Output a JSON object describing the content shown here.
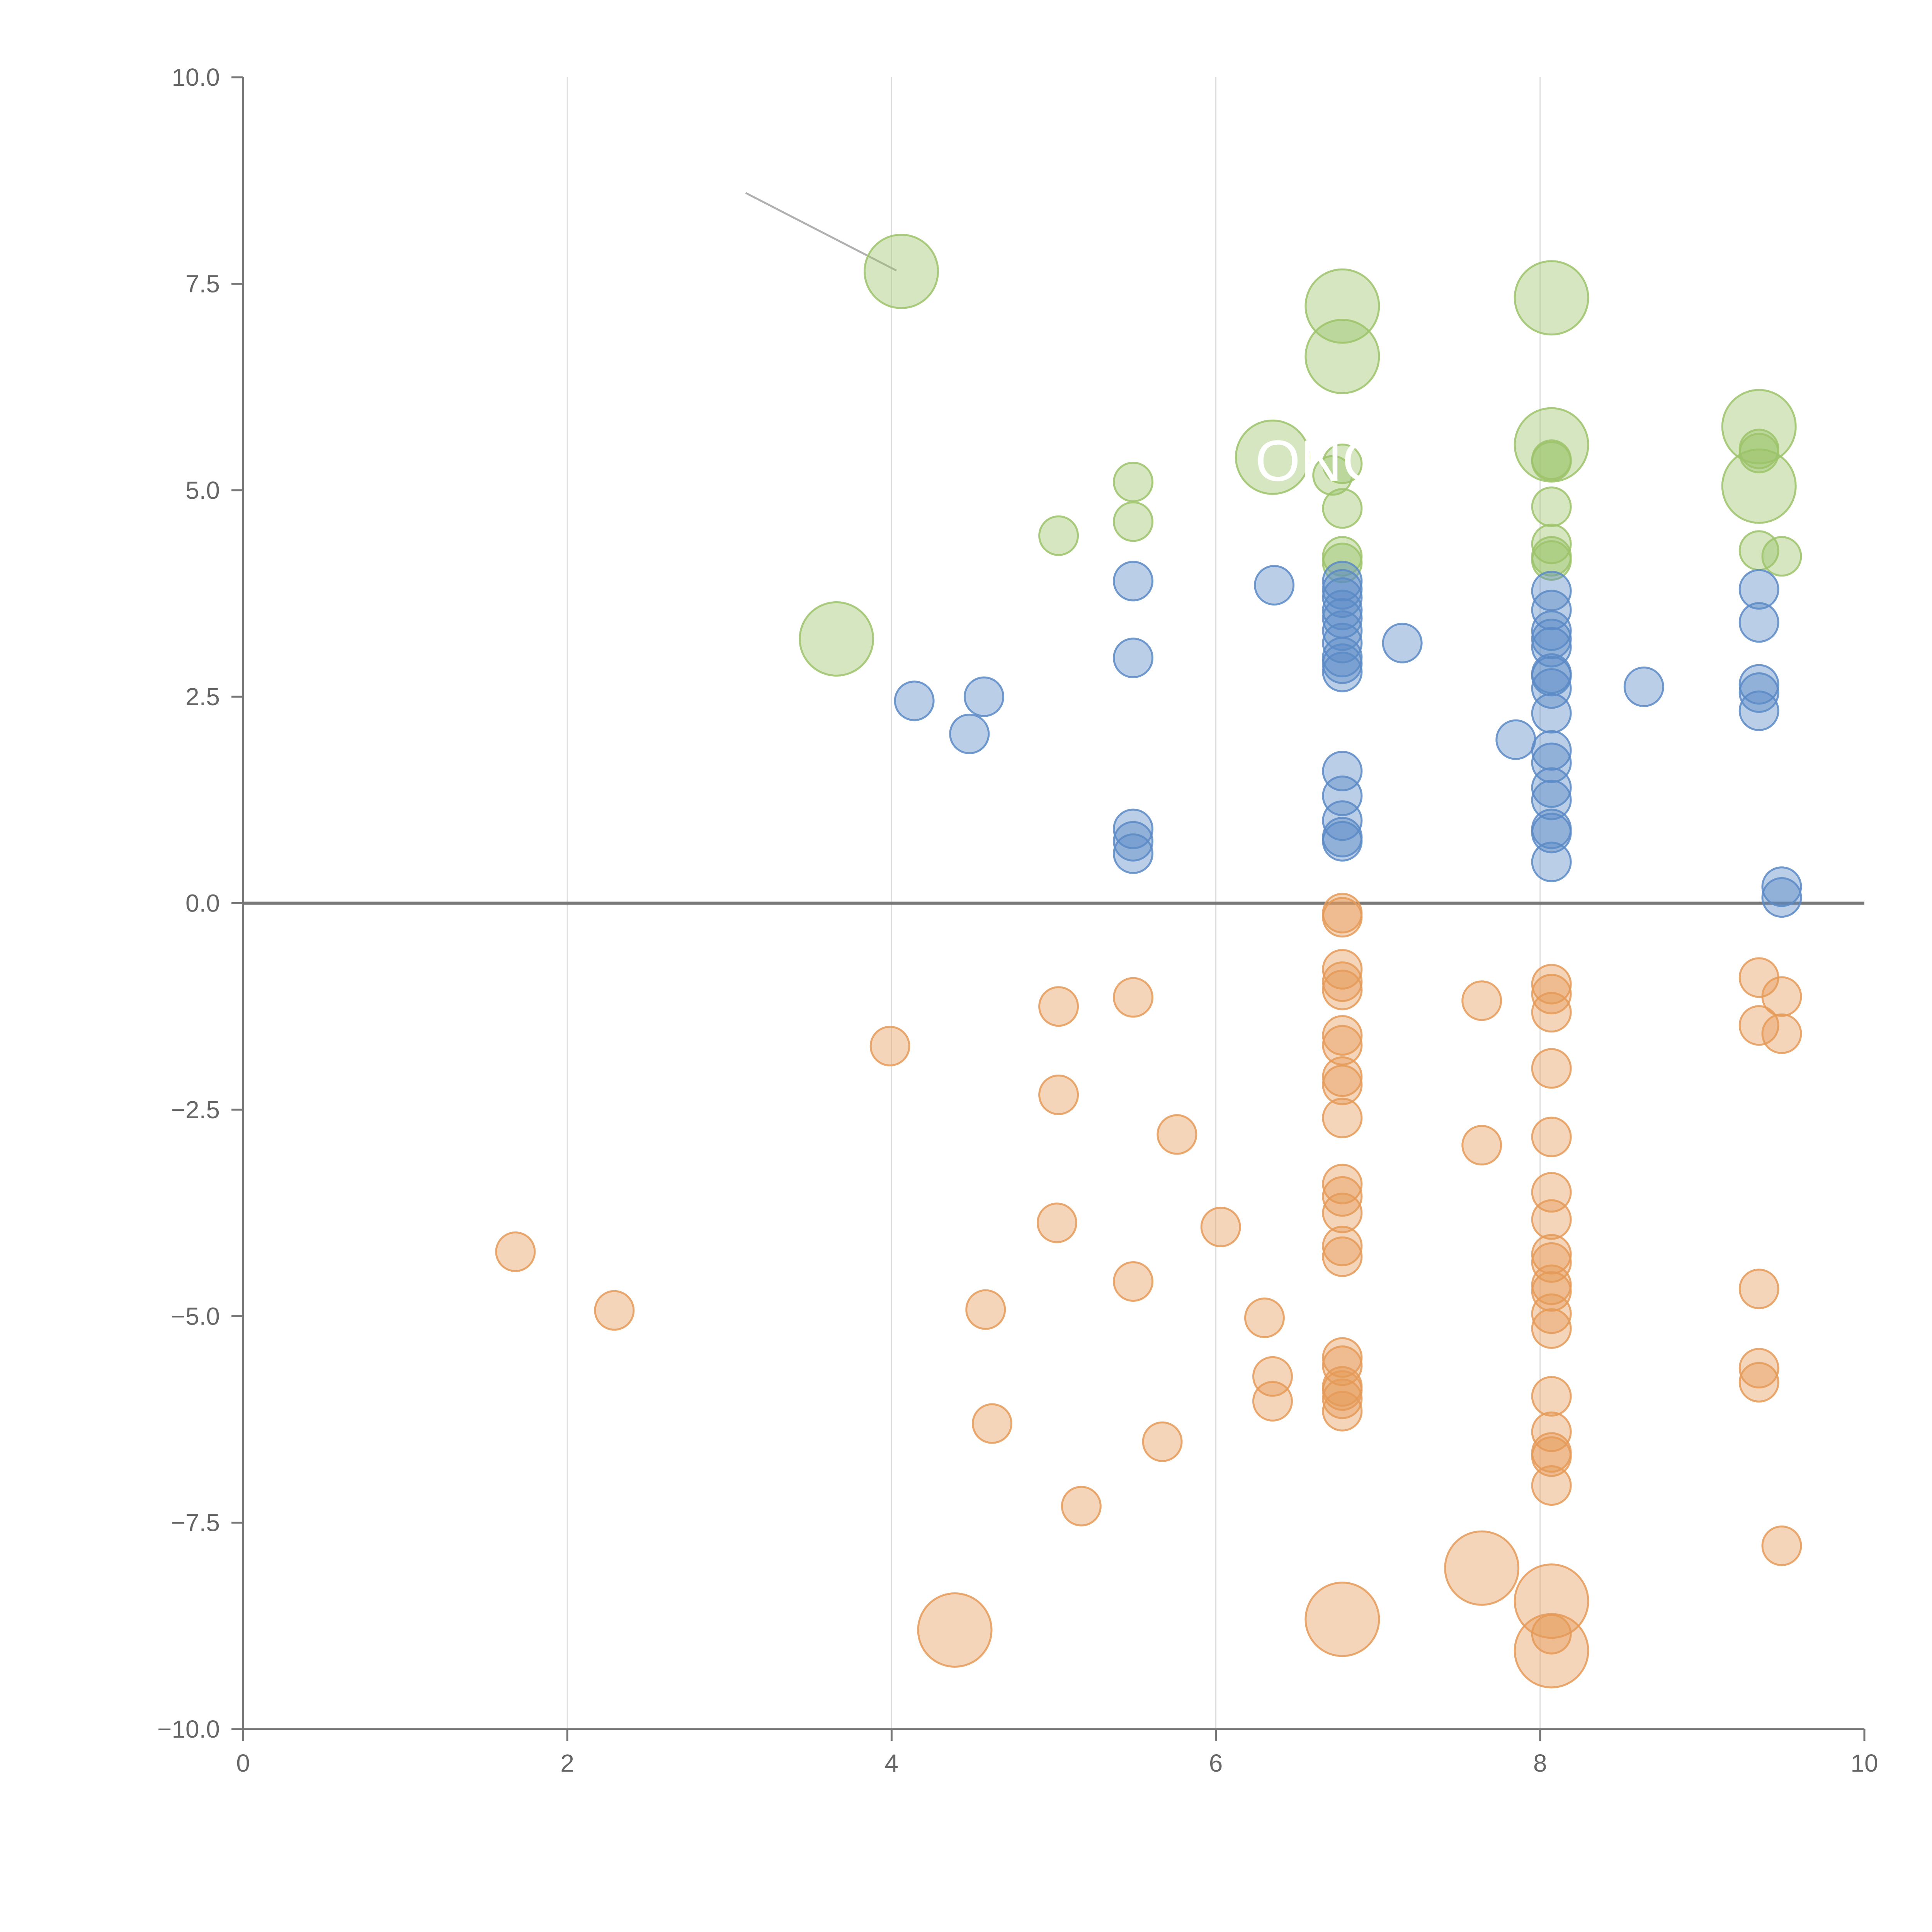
{
  "chart_data": {
    "type": "scatter",
    "title": "",
    "xlabel": "",
    "ylabel": "",
    "xlim": [
      0,
      10
    ],
    "ylim": [
      -10,
      10
    ],
    "x_ticks": [
      0,
      2,
      4,
      6,
      8,
      10
    ],
    "x_tick_labels": [
      "0",
      "2",
      "4",
      "6",
      "8",
      "10"
    ],
    "y_ticks": [
      -10,
      -7.5,
      -5,
      -2.5,
      0,
      2.5,
      5,
      7.5,
      10
    ],
    "y_tick_labels": [
      "−10.0",
      "−7.5",
      "−5.0",
      "−2.5",
      "0.0",
      "2.5",
      "5.0",
      "7.5",
      "10.0"
    ],
    "grid": "vertical",
    "zero_line": true,
    "legend": "none",
    "annotations": [
      {
        "text": "ONG",
        "x": 6.65,
        "y": 5.35
      }
    ],
    "series": [
      {
        "name": "green",
        "color": "#9cc36a",
        "points": [
          [
            4.06,
            7.65,
            2
          ],
          [
            3.66,
            3.2,
            2
          ],
          [
            6.78,
            7.23,
            2
          ],
          [
            6.78,
            6.62,
            2
          ],
          [
            8.07,
            7.33,
            2
          ],
          [
            8.07,
            5.55,
            2
          ],
          [
            9.35,
            5.77,
            2
          ],
          [
            9.35,
            5.05,
            2
          ],
          [
            6.35,
            5.4,
            2
          ],
          [
            5.49,
            5.1,
            1
          ],
          [
            5.49,
            4.62,
            1
          ],
          [
            5.03,
            4.45,
            1
          ],
          [
            6.78,
            5.32,
            1
          ],
          [
            6.72,
            5.18,
            1
          ],
          [
            6.78,
            4.78,
            1
          ],
          [
            6.78,
            4.2,
            1
          ],
          [
            6.78,
            4.12,
            1
          ],
          [
            8.07,
            5.37,
            1
          ],
          [
            8.07,
            5.35,
            1
          ],
          [
            8.07,
            4.8,
            1
          ],
          [
            8.07,
            4.35,
            1
          ],
          [
            8.07,
            4.2,
            1
          ],
          [
            8.07,
            4.15,
            1
          ],
          [
            9.35,
            5.5,
            1
          ],
          [
            9.35,
            5.45,
            1
          ],
          [
            9.35,
            4.27,
            1
          ],
          [
            9.49,
            4.2,
            1
          ]
        ]
      },
      {
        "name": "blue",
        "color": "#5b8ac6",
        "points": [
          [
            5.49,
            3.9,
            1
          ],
          [
            6.36,
            3.85,
            1
          ],
          [
            4.14,
            2.45,
            1
          ],
          [
            4.57,
            2.5,
            1
          ],
          [
            4.48,
            2.05,
            1
          ],
          [
            5.49,
            2.97,
            1
          ],
          [
            5.49,
            0.9,
            1
          ],
          [
            5.49,
            0.75,
            1
          ],
          [
            5.49,
            0.6,
            1
          ],
          [
            6.78,
            3.9,
            1
          ],
          [
            6.78,
            3.8,
            1
          ],
          [
            6.78,
            3.7,
            1
          ],
          [
            6.78,
            3.55,
            1
          ],
          [
            6.78,
            3.45,
            1
          ],
          [
            6.78,
            3.3,
            1
          ],
          [
            6.78,
            3.15,
            1
          ],
          [
            6.78,
            2.98,
            1
          ],
          [
            6.78,
            2.9,
            1
          ],
          [
            6.78,
            2.8,
            1
          ],
          [
            6.78,
            1.6,
            1
          ],
          [
            6.78,
            1.3,
            1
          ],
          [
            6.78,
            1.0,
            1
          ],
          [
            6.78,
            0.8,
            1
          ],
          [
            6.78,
            0.75,
            1
          ],
          [
            7.15,
            3.15,
            1
          ],
          [
            7.85,
            1.98,
            1
          ],
          [
            8.07,
            3.78,
            1
          ],
          [
            8.07,
            3.55,
            1
          ],
          [
            8.07,
            3.3,
            1
          ],
          [
            8.07,
            3.2,
            1
          ],
          [
            8.07,
            3.1,
            1
          ],
          [
            8.07,
            2.78,
            1
          ],
          [
            8.07,
            2.75,
            1
          ],
          [
            8.07,
            2.6,
            1
          ],
          [
            8.07,
            2.3,
            1
          ],
          [
            8.07,
            1.85,
            1
          ],
          [
            8.07,
            1.7,
            1
          ],
          [
            8.07,
            1.4,
            1
          ],
          [
            8.07,
            1.25,
            1
          ],
          [
            8.07,
            0.9,
            1
          ],
          [
            8.07,
            0.85,
            1
          ],
          [
            8.07,
            0.5,
            1
          ],
          [
            8.64,
            2.62,
            1
          ],
          [
            9.35,
            3.8,
            1
          ],
          [
            9.35,
            3.4,
            1
          ],
          [
            9.35,
            2.65,
            1
          ],
          [
            9.35,
            2.55,
            1
          ],
          [
            9.35,
            2.33,
            1
          ],
          [
            9.49,
            0.2,
            1
          ],
          [
            9.49,
            0.07,
            1
          ]
        ]
      },
      {
        "name": "orange",
        "color": "#e59a58",
        "points": [
          [
            6.78,
            -0.12,
            1
          ],
          [
            6.78,
            -0.17,
            1
          ],
          [
            6.78,
            -0.8,
            1
          ],
          [
            6.78,
            -0.95,
            1
          ],
          [
            6.78,
            -1.05,
            1
          ],
          [
            6.78,
            -1.6,
            1
          ],
          [
            6.78,
            -1.72,
            1
          ],
          [
            6.78,
            -2.1,
            1
          ],
          [
            6.78,
            -2.2,
            1
          ],
          [
            6.78,
            -2.6,
            1
          ],
          [
            6.78,
            -3.4,
            1
          ],
          [
            6.78,
            -3.55,
            1
          ],
          [
            6.78,
            -3.75,
            1
          ],
          [
            6.78,
            -4.15,
            1
          ],
          [
            6.78,
            -4.28,
            1
          ],
          [
            6.78,
            -5.5,
            1
          ],
          [
            6.78,
            -5.6,
            1
          ],
          [
            6.78,
            -5.85,
            1
          ],
          [
            6.78,
            -5.9,
            1
          ],
          [
            6.78,
            -6.0,
            1
          ],
          [
            6.78,
            -6.15,
            1
          ],
          [
            6.78,
            -8.67,
            2
          ],
          [
            3.99,
            -1.73,
            1
          ],
          [
            5.03,
            -1.25,
            1
          ],
          [
            5.49,
            -1.14,
            1
          ],
          [
            5.03,
            -2.32,
            1
          ],
          [
            5.76,
            -2.8,
            1
          ],
          [
            1.68,
            -4.22,
            1
          ],
          [
            2.29,
            -4.93,
            1
          ],
          [
            5.02,
            -3.87,
            1
          ],
          [
            6.03,
            -3.92,
            1
          ],
          [
            5.49,
            -4.58,
            1
          ],
          [
            4.58,
            -4.92,
            1
          ],
          [
            6.3,
            -5.02,
            1
          ],
          [
            6.35,
            -5.73,
            1
          ],
          [
            6.35,
            -6.03,
            1
          ],
          [
            4.62,
            -6.3,
            1
          ],
          [
            5.67,
            -6.52,
            1
          ],
          [
            5.17,
            -7.3,
            1
          ],
          [
            4.39,
            -8.8,
            2
          ],
          [
            7.64,
            -1.18,
            1
          ],
          [
            7.64,
            -2.93,
            1
          ],
          [
            7.64,
            -8.05,
            2
          ],
          [
            8.07,
            -0.98,
            1
          ],
          [
            8.07,
            -1.1,
            1
          ],
          [
            8.07,
            -1.32,
            1
          ],
          [
            8.07,
            -2.0,
            1
          ],
          [
            8.07,
            -2.83,
            1
          ],
          [
            8.07,
            -3.5,
            1
          ],
          [
            8.07,
            -3.83,
            1
          ],
          [
            8.07,
            -4.25,
            1
          ],
          [
            8.07,
            -4.35,
            1
          ],
          [
            8.07,
            -4.62,
            1
          ],
          [
            8.07,
            -4.7,
            1
          ],
          [
            8.07,
            -4.97,
            1
          ],
          [
            8.07,
            -5.15,
            1
          ],
          [
            8.07,
            -5.97,
            1
          ],
          [
            8.07,
            -6.4,
            1
          ],
          [
            8.07,
            -6.65,
            1
          ],
          [
            8.07,
            -6.7,
            1
          ],
          [
            8.07,
            -7.05,
            1
          ],
          [
            8.07,
            -8.45,
            2
          ],
          [
            8.07,
            -8.85,
            1
          ],
          [
            8.07,
            -9.05,
            2
          ],
          [
            9.35,
            -0.9,
            1
          ],
          [
            9.35,
            -1.48,
            1
          ],
          [
            9.49,
            -1.13,
            1
          ],
          [
            9.49,
            -1.58,
            1
          ],
          [
            9.35,
            -4.67,
            1
          ],
          [
            9.35,
            -5.63,
            1
          ],
          [
            9.35,
            -5.8,
            1
          ],
          [
            9.49,
            -7.78,
            1
          ]
        ]
      }
    ]
  }
}
